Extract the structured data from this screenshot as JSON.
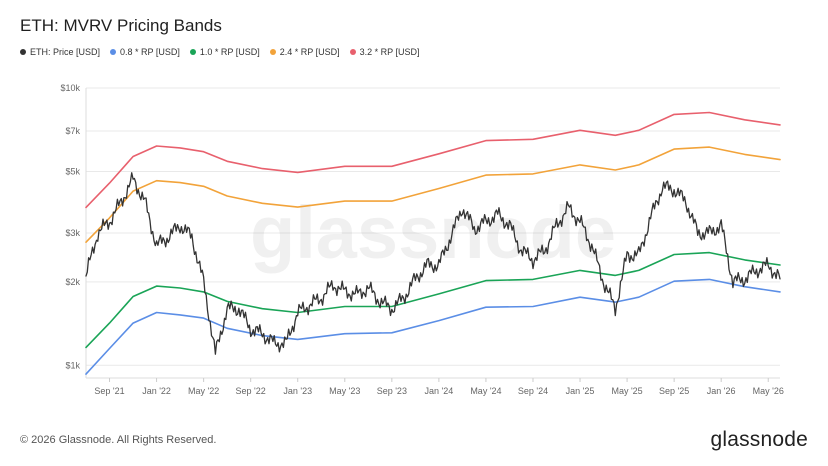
{
  "header": {
    "title": "ETH: MVRV Pricing Bands"
  },
  "footer": {
    "copyright": "© 2026 Glassnode. All Rights Reserved.",
    "brand": "glassnode"
  },
  "watermark": {
    "text": "glassnode"
  },
  "colors": {
    "price": "#333333",
    "rp08": "#5b8ee6",
    "rp10": "#1aa457",
    "rp24": "#f2a33a",
    "rp32": "#e8606d",
    "grid": "#e9e9e9",
    "axis_text": "#666666"
  },
  "chart_data": {
    "type": "line",
    "title": "ETH: MVRV Pricing Bands",
    "y_scale": "log",
    "ylim": [
      900,
      10000
    ],
    "xlim": [
      "2021-07",
      "2026-06"
    ],
    "grid": true,
    "legend_placement": "top-left",
    "y_ticks": [
      {
        "value": 1000,
        "label": "$1k"
      },
      {
        "value": 2000,
        "label": "$2k"
      },
      {
        "value": 3000,
        "label": "$3k"
      },
      {
        "value": 5000,
        "label": "$5k"
      },
      {
        "value": 7000,
        "label": "$7k"
      },
      {
        "value": 10000,
        "label": "$10k"
      }
    ],
    "x_ticks": [
      {
        "value": "2021-09",
        "label": "Sep '21"
      },
      {
        "value": "2022-01",
        "label": "Jan '22"
      },
      {
        "value": "2022-05",
        "label": "May '22"
      },
      {
        "value": "2022-09",
        "label": "Sep '22"
      },
      {
        "value": "2023-01",
        "label": "Jan '23"
      },
      {
        "value": "2023-05",
        "label": "May '23"
      },
      {
        "value": "2023-09",
        "label": "Sep '23"
      },
      {
        "value": "2024-01",
        "label": "Jan '24"
      },
      {
        "value": "2024-05",
        "label": "May '24"
      },
      {
        "value": "2024-09",
        "label": "Sep '24"
      },
      {
        "value": "2025-01",
        "label": "Jan '25"
      },
      {
        "value": "2025-05",
        "label": "May '25"
      },
      {
        "value": "2025-09",
        "label": "Sep '25"
      },
      {
        "value": "2026-01",
        "label": "Jan '26"
      },
      {
        "value": "2026-05",
        "label": "May '26"
      }
    ],
    "series": [
      {
        "name": "ETH: Price [USD]",
        "key": "price",
        "points": [
          [
            "2021-07",
            2100
          ],
          [
            "2021-08",
            3000
          ],
          [
            "2021-09",
            3300
          ],
          [
            "2021-10",
            3900
          ],
          [
            "2021-11",
            4700
          ],
          [
            "2021-12",
            3900
          ],
          [
            "2022-01",
            2700
          ],
          [
            "2022-02",
            2900
          ],
          [
            "2022-03",
            3200
          ],
          [
            "2022-04",
            2900
          ],
          [
            "2022-05",
            2000
          ],
          [
            "2022-06",
            1100
          ],
          [
            "2022-07",
            1600
          ],
          [
            "2022-08",
            1600
          ],
          [
            "2022-09",
            1350
          ],
          [
            "2022-10",
            1300
          ],
          [
            "2022-11",
            1200
          ],
          [
            "2022-12",
            1200
          ],
          [
            "2023-01",
            1550
          ],
          [
            "2023-02",
            1650
          ],
          [
            "2023-03",
            1750
          ],
          [
            "2023-04",
            1950
          ],
          [
            "2023-05",
            1850
          ],
          [
            "2023-06",
            1800
          ],
          [
            "2023-07",
            1900
          ],
          [
            "2023-08",
            1700
          ],
          [
            "2023-09",
            1600
          ],
          [
            "2023-10",
            1750
          ],
          [
            "2023-11",
            2050
          ],
          [
            "2023-12",
            2300
          ],
          [
            "2024-01",
            2300
          ],
          [
            "2024-02",
            2900
          ],
          [
            "2024-03",
            3700
          ],
          [
            "2024-04",
            3100
          ],
          [
            "2024-05",
            3300
          ],
          [
            "2024-06",
            3500
          ],
          [
            "2024-07",
            3200
          ],
          [
            "2024-08",
            2600
          ],
          [
            "2024-09",
            2400
          ],
          [
            "2024-10",
            2600
          ],
          [
            "2024-11",
            3200
          ],
          [
            "2024-12",
            3700
          ],
          [
            "2025-01",
            3300
          ],
          [
            "2025-02",
            2700
          ],
          [
            "2025-03",
            2000
          ],
          [
            "2025-04",
            1600
          ],
          [
            "2025-05",
            2500
          ],
          [
            "2025-06",
            2500
          ],
          [
            "2025-07",
            3400
          ],
          [
            "2025-08",
            4400
          ],
          [
            "2025-09",
            4300
          ],
          [
            "2025-10",
            3900
          ],
          [
            "2025-11",
            3000
          ],
          [
            "2025-12",
            3000
          ],
          [
            "2026-01",
            3200
          ],
          [
            "2026-02",
            2000
          ],
          [
            "2026-03",
            2050
          ],
          [
            "2026-04",
            2200
          ],
          [
            "2026-05",
            2300
          ],
          [
            "2026-06",
            2050
          ]
        ]
      },
      {
        "name": "0.8 * RP [USD]",
        "key": "rp08",
        "points": [
          [
            "2021-07",
            930
          ],
          [
            "2021-09",
            1150
          ],
          [
            "2021-11",
            1420
          ],
          [
            "2022-01",
            1550
          ],
          [
            "2022-03",
            1520
          ],
          [
            "2022-05",
            1480
          ],
          [
            "2022-07",
            1360
          ],
          [
            "2022-10",
            1280
          ],
          [
            "2023-01",
            1240
          ],
          [
            "2023-05",
            1300
          ],
          [
            "2023-09",
            1310
          ],
          [
            "2024-01",
            1450
          ],
          [
            "2024-05",
            1620
          ],
          [
            "2024-09",
            1630
          ],
          [
            "2025-01",
            1760
          ],
          [
            "2025-04",
            1690
          ],
          [
            "2025-06",
            1760
          ],
          [
            "2025-09",
            2010
          ],
          [
            "2025-12",
            2040
          ],
          [
            "2026-03",
            1920
          ],
          [
            "2026-06",
            1840
          ]
        ]
      },
      {
        "name": "1.0 * RP [USD]",
        "key": "rp10",
        "points": [
          [
            "2021-07",
            1160
          ],
          [
            "2021-09",
            1420
          ],
          [
            "2021-11",
            1770
          ],
          [
            "2022-01",
            1930
          ],
          [
            "2022-03",
            1900
          ],
          [
            "2022-05",
            1840
          ],
          [
            "2022-07",
            1700
          ],
          [
            "2022-10",
            1600
          ],
          [
            "2023-01",
            1550
          ],
          [
            "2023-05",
            1630
          ],
          [
            "2023-09",
            1630
          ],
          [
            "2024-01",
            1810
          ],
          [
            "2024-05",
            2020
          ],
          [
            "2024-09",
            2040
          ],
          [
            "2025-01",
            2200
          ],
          [
            "2025-04",
            2110
          ],
          [
            "2025-06",
            2200
          ],
          [
            "2025-09",
            2510
          ],
          [
            "2025-12",
            2550
          ],
          [
            "2026-03",
            2400
          ],
          [
            "2026-06",
            2300
          ]
        ]
      },
      {
        "name": "2.4 * RP [USD]",
        "key": "rp24",
        "points": [
          [
            "2021-07",
            2780
          ],
          [
            "2021-09",
            3400
          ],
          [
            "2021-11",
            4250
          ],
          [
            "2022-01",
            4630
          ],
          [
            "2022-03",
            4560
          ],
          [
            "2022-05",
            4420
          ],
          [
            "2022-07",
            4080
          ],
          [
            "2022-10",
            3840
          ],
          [
            "2023-01",
            3720
          ],
          [
            "2023-05",
            3910
          ],
          [
            "2023-09",
            3910
          ],
          [
            "2024-01",
            4340
          ],
          [
            "2024-05",
            4850
          ],
          [
            "2024-09",
            4900
          ],
          [
            "2025-01",
            5280
          ],
          [
            "2025-04",
            5060
          ],
          [
            "2025-06",
            5280
          ],
          [
            "2025-09",
            6020
          ],
          [
            "2025-12",
            6120
          ],
          [
            "2026-03",
            5760
          ],
          [
            "2026-06",
            5520
          ]
        ]
      },
      {
        "name": "3.2 * RP [USD]",
        "key": "rp32",
        "points": [
          [
            "2021-07",
            3710
          ],
          [
            "2021-09",
            4540
          ],
          [
            "2021-11",
            5660
          ],
          [
            "2022-01",
            6180
          ],
          [
            "2022-03",
            6080
          ],
          [
            "2022-05",
            5890
          ],
          [
            "2022-07",
            5440
          ],
          [
            "2022-10",
            5120
          ],
          [
            "2023-01",
            4960
          ],
          [
            "2023-05",
            5220
          ],
          [
            "2023-09",
            5220
          ],
          [
            "2024-01",
            5790
          ],
          [
            "2024-05",
            6460
          ],
          [
            "2024-09",
            6530
          ],
          [
            "2025-01",
            7040
          ],
          [
            "2025-04",
            6750
          ],
          [
            "2025-06",
            7040
          ],
          [
            "2025-09",
            8030
          ],
          [
            "2025-12",
            8160
          ],
          [
            "2026-03",
            7680
          ],
          [
            "2026-06",
            7360
          ]
        ]
      }
    ]
  }
}
